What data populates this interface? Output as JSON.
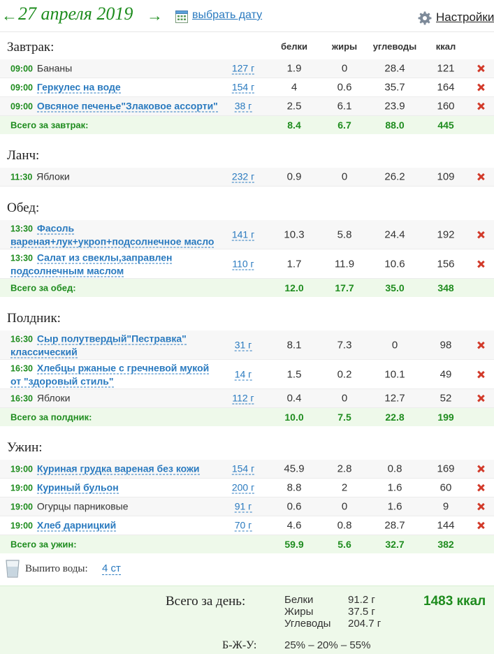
{
  "header": {
    "prev_arrow": "←",
    "date": "27 апреля 2019",
    "next_arrow": "→",
    "choose_date": "выбрать дату",
    "settings": "Настройки"
  },
  "columns": {
    "protein": "белки",
    "fat": "жиры",
    "carbs": "углеводы",
    "kcal": "ккал"
  },
  "meals": [
    {
      "title": "Завтрак:",
      "items": [
        {
          "time": "09:00",
          "name": [
            "Бананы"
          ],
          "link": false,
          "grams": "127 г",
          "protein": "1.9",
          "fat": "0",
          "carbs": "28.4",
          "kcal": "121"
        },
        {
          "time": "09:00",
          "name": [
            "Геркулес на воде"
          ],
          "link": true,
          "grams": "154 г",
          "protein": "4",
          "fat": "0.6",
          "carbs": "35.7",
          "kcal": "164"
        },
        {
          "time": "09:00",
          "name": [
            "Овсяное печенье\"Злаковое ассорти\""
          ],
          "link": true,
          "grams": "38 г",
          "protein": "2.5",
          "fat": "6.1",
          "carbs": "23.9",
          "kcal": "160"
        }
      ],
      "total": {
        "label": "Всего за завтрак:",
        "protein": "8.4",
        "fat": "6.7",
        "carbs": "88.0",
        "kcal": "445"
      }
    },
    {
      "title": "Ланч:",
      "items": [
        {
          "time": "11:30",
          "name": [
            "Яблоки"
          ],
          "link": false,
          "grams": "232 г",
          "protein": "0.9",
          "fat": "0",
          "carbs": "26.2",
          "kcal": "109"
        }
      ],
      "total": null
    },
    {
      "title": "Обед:",
      "items": [
        {
          "time": "13:30",
          "name": [
            "Фасоль",
            "вареная+лук+укроп+подсолнечное масло"
          ],
          "link": true,
          "grams": "141 г",
          "protein": "10.3",
          "fat": "5.8",
          "carbs": "24.4",
          "kcal": "192"
        },
        {
          "time": "13:30",
          "name": [
            "Салат из свеклы,заправлен",
            "подсолнечным маслом"
          ],
          "link": true,
          "grams": "110 г",
          "protein": "1.7",
          "fat": "11.9",
          "carbs": "10.6",
          "kcal": "156"
        }
      ],
      "total": {
        "label": "Всего за обед:",
        "protein": "12.0",
        "fat": "17.7",
        "carbs": "35.0",
        "kcal": "348"
      }
    },
    {
      "title": "Полдник:",
      "items": [
        {
          "time": "16:30",
          "name": [
            "Сыр полутвердый\"Пестравка\"",
            "классический"
          ],
          "link": true,
          "grams": "31 г",
          "protein": "8.1",
          "fat": "7.3",
          "carbs": "0",
          "kcal": "98"
        },
        {
          "time": "16:30",
          "name": [
            "Хлебцы ржаные с гречневой мукой",
            "от \"здоровый стиль\""
          ],
          "link": true,
          "grams": "14 г",
          "protein": "1.5",
          "fat": "0.2",
          "carbs": "10.1",
          "kcal": "49"
        },
        {
          "time": "16:30",
          "name": [
            "Яблоки"
          ],
          "link": false,
          "grams": "112 г",
          "protein": "0.4",
          "fat": "0",
          "carbs": "12.7",
          "kcal": "52"
        }
      ],
      "total": {
        "label": "Всего за полдник:",
        "protein": "10.0",
        "fat": "7.5",
        "carbs": "22.8",
        "kcal": "199"
      }
    },
    {
      "title": "Ужин:",
      "items": [
        {
          "time": "19:00",
          "name": [
            "Куриная грудка вареная без кожи"
          ],
          "link": true,
          "grams": "154 г",
          "protein": "45.9",
          "fat": "2.8",
          "carbs": "0.8",
          "kcal": "169"
        },
        {
          "time": "19:00",
          "name": [
            "Куриный бульон"
          ],
          "link": true,
          "grams": "200 г",
          "protein": "8.8",
          "fat": "2",
          "carbs": "1.6",
          "kcal": "60"
        },
        {
          "time": "19:00",
          "name": [
            "Огурцы парниковые"
          ],
          "link": false,
          "grams": "91 г",
          "protein": "0.6",
          "fat": "0",
          "carbs": "1.6",
          "kcal": "9"
        },
        {
          "time": "19:00",
          "name": [
            "Хлеб дарницкий"
          ],
          "link": true,
          "grams": "70 г",
          "protein": "4.6",
          "fat": "0.8",
          "carbs": "28.7",
          "kcal": "144"
        }
      ],
      "total": {
        "label": "Всего за ужин:",
        "protein": "59.9",
        "fat": "5.6",
        "carbs": "32.7",
        "kcal": "382"
      }
    }
  ],
  "water": {
    "label": "Выпито воды:",
    "value": "4 ст"
  },
  "day_total": {
    "label": "Всего за день:",
    "protein_label": "Белки",
    "protein": "91.2 г",
    "fat_label": "Жиры",
    "fat": "37.5 г",
    "carbs_label": "Углеводы",
    "carbs": "204.7 г",
    "kcal": "1483 ккал",
    "bju_label": "Б-Ж-У:",
    "bju": "25% – 20% – 55%"
  },
  "colors": {
    "accent_green": "#1e8c1e",
    "link_blue": "#2a7abf",
    "delete_red": "#d23a2a",
    "total_bg": "#eef9ea"
  }
}
